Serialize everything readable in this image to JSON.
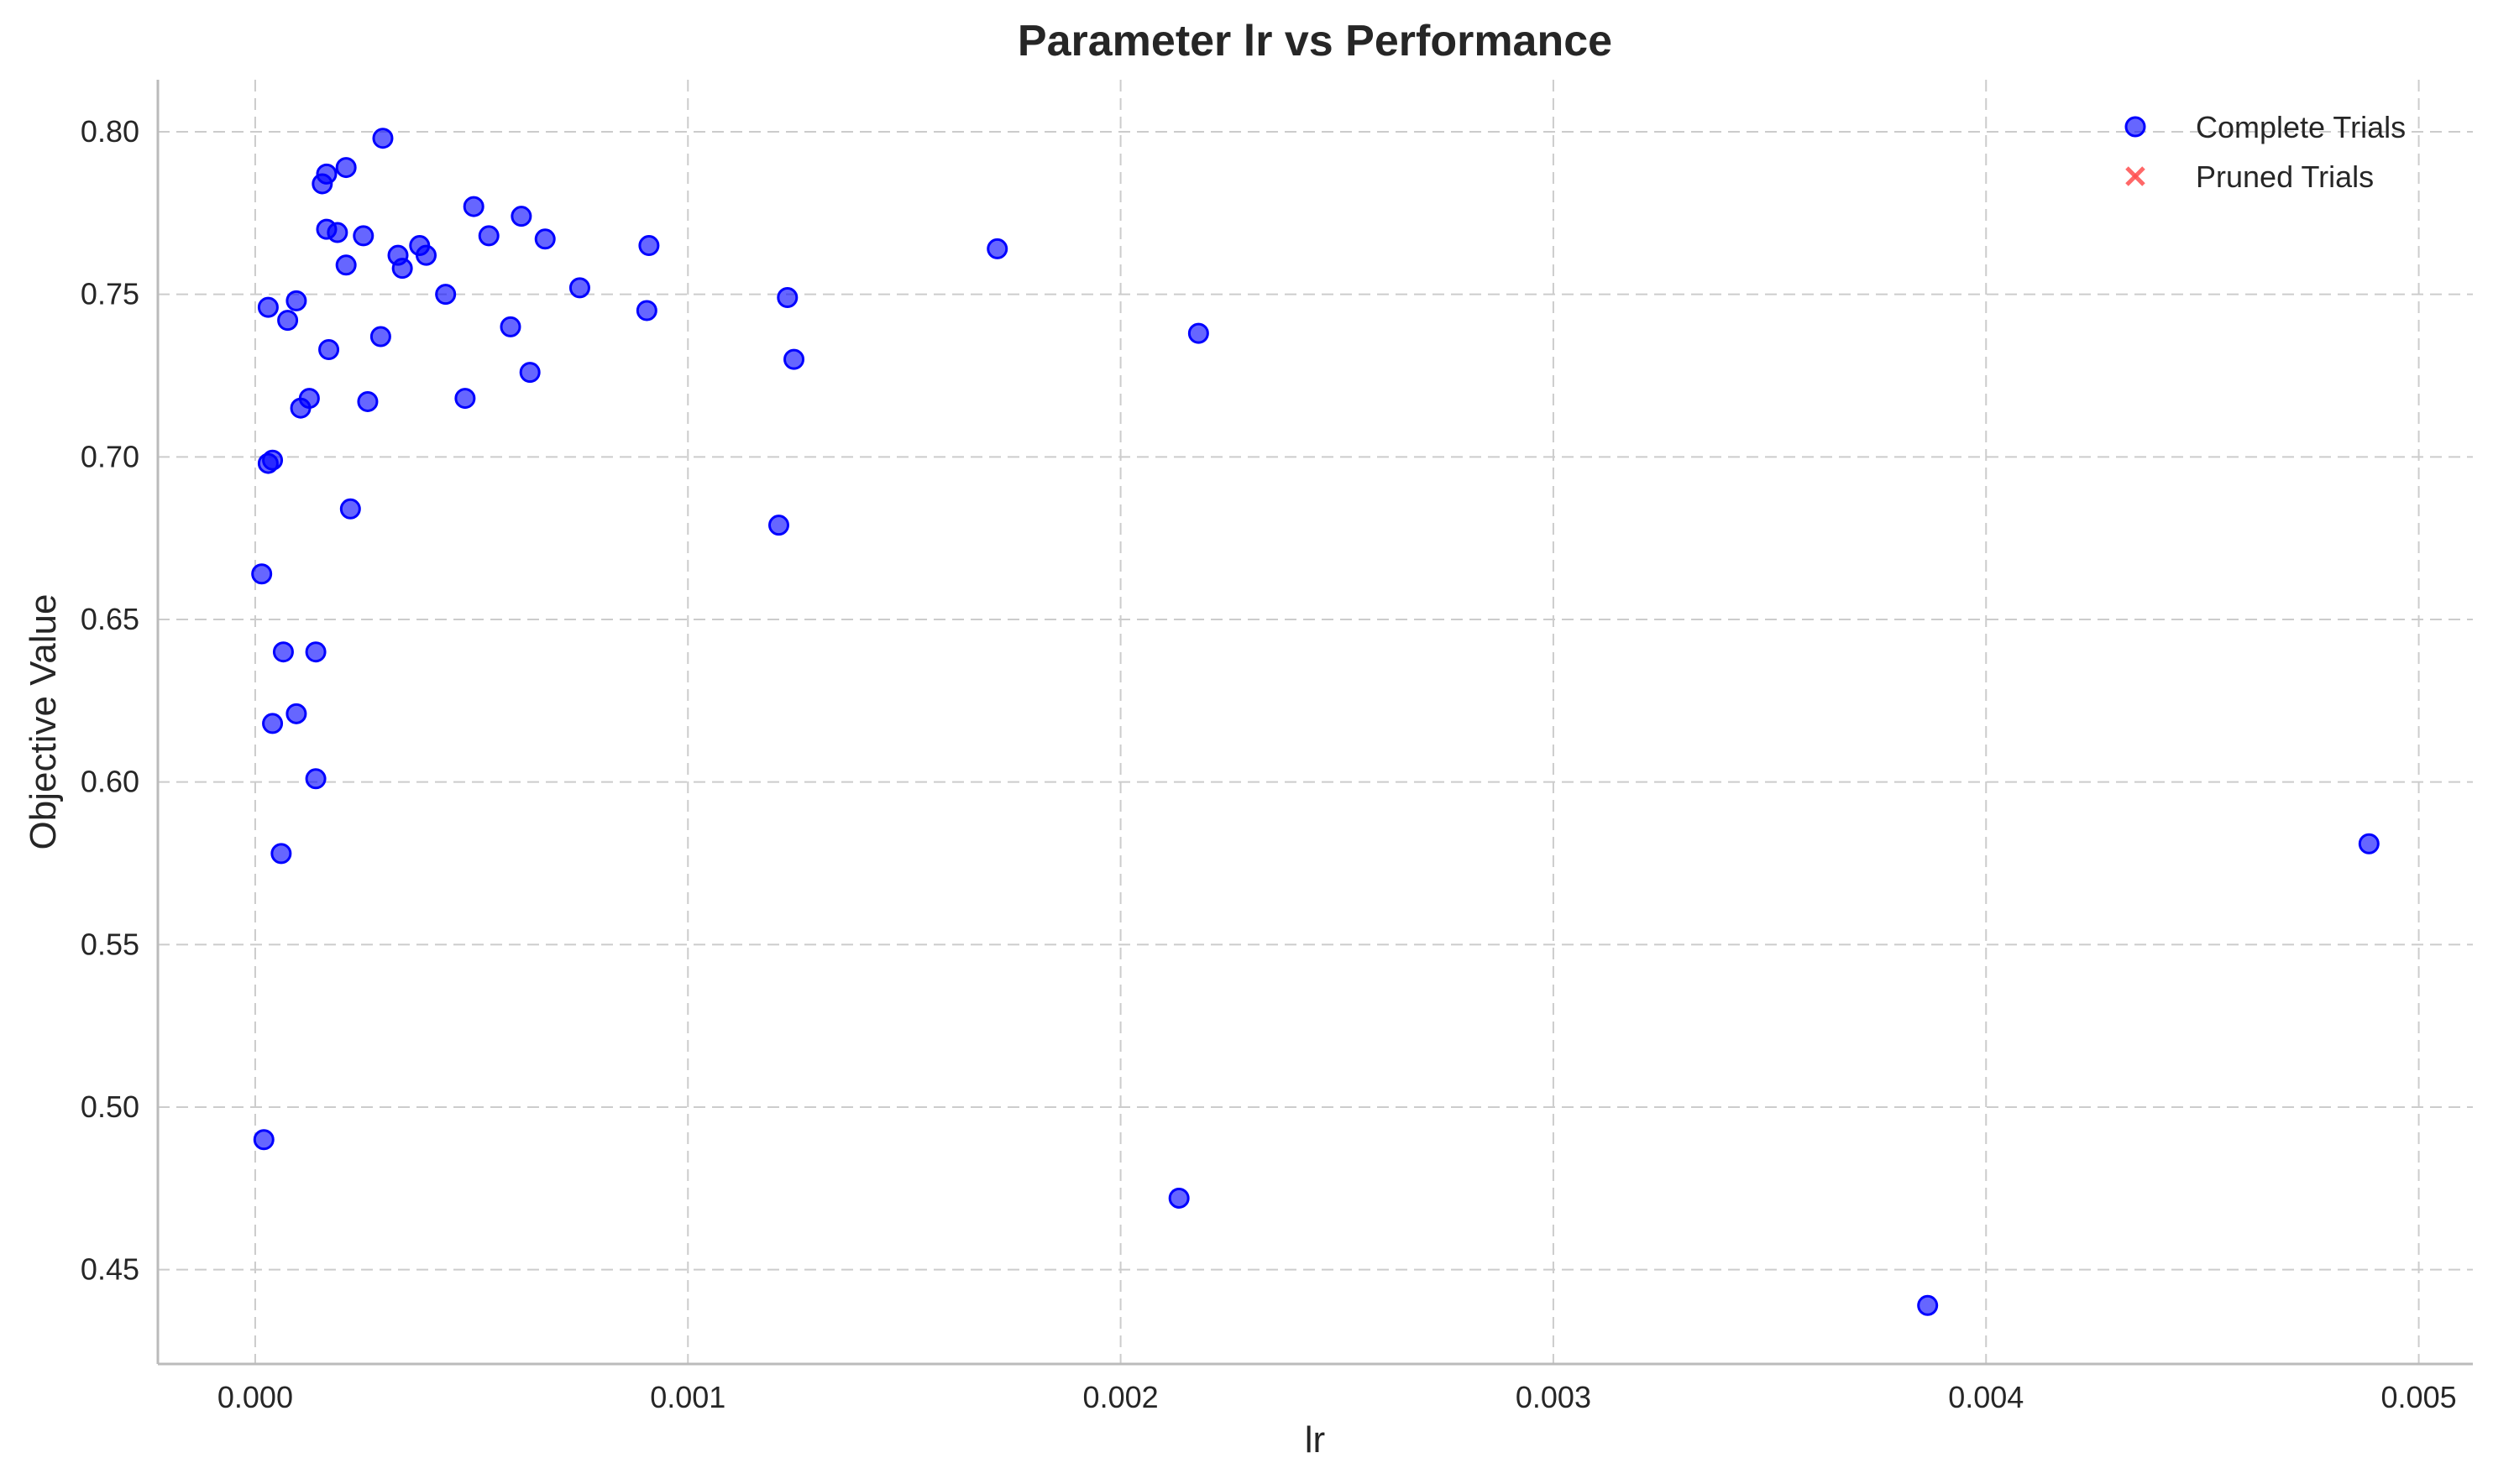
{
  "chart_data": {
    "type": "scatter",
    "title": "Parameter lr vs Performance",
    "xlabel": "lr",
    "ylabel": "Objective Value",
    "xlim": [
      -0.000225,
      0.005125
    ],
    "ylim": [
      0.421,
      0.816
    ],
    "xticks": [
      0.0,
      0.001,
      0.002,
      0.003,
      0.004,
      0.005
    ],
    "xtick_labels": [
      "0.000",
      "0.001",
      "0.002",
      "0.003",
      "0.004",
      "0.005"
    ],
    "yticks": [
      0.45,
      0.5,
      0.55,
      0.6,
      0.65,
      0.7,
      0.75,
      0.8
    ],
    "ytick_labels": [
      "0.45",
      "0.50",
      "0.55",
      "0.60",
      "0.65",
      "0.70",
      "0.75",
      "0.80"
    ],
    "grid": true,
    "legend_position": "top-right",
    "series": [
      {
        "name": "Complete Trials",
        "marker": "circle",
        "color": "#0000ff",
        "x": [
          1.5e-05,
          2e-05,
          3e-05,
          3e-05,
          4e-05,
          4e-05,
          6e-05,
          6.5e-05,
          7.5e-05,
          9.5e-05,
          9.5e-05,
          0.000105,
          0.000125,
          0.00014,
          0.00014,
          0.000155,
          0.000165,
          0.000165,
          0.00017,
          0.00019,
          0.00021,
          0.00021,
          0.00022,
          0.00025,
          0.00026,
          0.00029,
          0.000295,
          0.00033,
          0.00034,
          0.00038,
          0.000395,
          0.00044,
          0.000485,
          0.000505,
          0.00054,
          0.00059,
          0.000615,
          0.000635,
          0.00067,
          0.00075,
          0.000905,
          0.00091,
          0.00121,
          0.00123,
          0.001245,
          0.001715,
          0.002135,
          0.00218,
          0.003865,
          0.004885
        ],
        "y": [
          0.664,
          0.49,
          0.746,
          0.698,
          0.699,
          0.618,
          0.578,
          0.64,
          0.742,
          0.621,
          0.748,
          0.715,
          0.718,
          0.64,
          0.601,
          0.784,
          0.787,
          0.77,
          0.733,
          0.769,
          0.789,
          0.759,
          0.684,
          0.768,
          0.717,
          0.737,
          0.798,
          0.762,
          0.758,
          0.765,
          0.762,
          0.75,
          0.718,
          0.777,
          0.768,
          0.74,
          0.774,
          0.726,
          0.767,
          0.752,
          0.745,
          0.765,
          0.679,
          0.749,
          0.73,
          0.764,
          0.472,
          0.738,
          0.439,
          0.581
        ]
      },
      {
        "name": "Pruned Trials",
        "marker": "x",
        "color": "#ff4d4d",
        "x": [],
        "y": []
      }
    ]
  }
}
